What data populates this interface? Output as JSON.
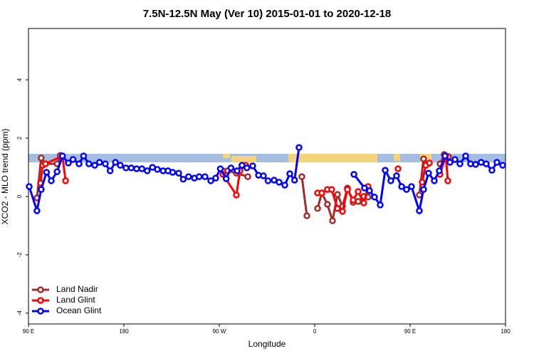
{
  "chart_data": {
    "type": "line",
    "title": "7.5N-12.5N May (Ver 10)   2015-01-01 to 2020-12-18",
    "x_label": "Longitude",
    "y_label": "XCO2 - MLO trend (ppm)",
    "xlim": [
      90,
      540
    ],
    "ylim": [
      -4.37,
      5.76
    ],
    "xticks": [
      {
        "value": 90,
        "label": "90 E"
      },
      {
        "value": 180,
        "label": "180"
      },
      {
        "value": 270,
        "label": "90 W"
      },
      {
        "value": 360,
        "label": "0"
      },
      {
        "value": 450,
        "label": "90 E"
      },
      {
        "value": 540,
        "label": "180"
      }
    ],
    "yticks": [
      -4,
      -2,
      0,
      2,
      4
    ],
    "legend": "lower left",
    "series": [
      {
        "name": "Land Nadir",
        "color": "#a52a2a",
        "x": [
          98,
          102,
          106,
          117,
          120,
          null,
          273.4,
          278,
          286.1,
          296.9,
          null,
          347.9,
          352.6,
          null,
          362.7,
          366.7,
          372,
          376.8,
          381.5,
          386.2,
          390.9,
          396.3,
          401,
          406.3,
          410.4,
          null,
          458.7,
          462.7,
          466.8,
          null,
          478.2,
          482.2,
          486.2
        ],
        "values": [
          -0.05,
          1.32,
          1.12,
          1.12,
          1.41,
          null,
          0.88,
          0.88,
          0.8,
          0.68,
          null,
          0.68,
          -0.66,
          null,
          -0.41,
          0.12,
          -0.27,
          -0.83,
          0.07,
          -0.34,
          0.29,
          -0.2,
          -0.17,
          0,
          -0.02,
          null,
          0.05,
          1.29,
          1.12,
          null,
          1.12,
          1.44,
          1.37
        ]
      },
      {
        "name": "Land Glint",
        "color": "#ff0000",
        "x": [
          101.4,
          103.4,
          106,
          122,
          125,
          null,
          273.4,
          286.1,
          289.5,
          294.9,
          null,
          362.7,
          366.7,
          372,
          376,
          381.5,
          386.2,
          390.9,
          396.3,
          401,
          406.3,
          410.4,
          null,
          438.6,
          null,
          461.4,
          464.8,
          468.2,
          null,
          478.2,
          483.6,
          485.6
        ],
        "values": [
          0.46,
          1.07,
          1.12,
          1.39,
          0.54,
          null,
          0.76,
          0.05,
          0.88,
          1.07,
          null,
          0.12,
          0.12,
          0.24,
          0.24,
          -0.41,
          -0.51,
          0.24,
          -0.12,
          0.17,
          -0.22,
          0.34,
          null,
          0.95,
          null,
          0.49,
          1.07,
          1.15,
          null,
          0.76,
          1.39,
          0.54
        ]
      },
      {
        "name": "Ocean Glint",
        "color": "#0000ff",
        "x": [
          90.7,
          98,
          102,
          107,
          111.5,
          117,
          122,
          127.6,
          132,
          137.7,
          142,
          147,
          152.5,
          157,
          162.5,
          167,
          172,
          176.6,
          182,
          187,
          192,
          197,
          202,
          207,
          211.6,
          217,
          221.6,
          226,
          231.7,
          236,
          241,
          246.5,
          251,
          256.5,
          262,
          266.6,
          271,
          276.5,
          281,
          286.8,
          291.4,
          296,
          301.5,
          307,
          311.6,
          316,
          321.7,
          326.4,
          331.8,
          336.5,
          341,
          345.2,
          null,
          397,
          407,
          411.7,
          416.4,
          421.8,
          426.5,
          431.8,
          437.2,
          442,
          446.6,
          451.3,
          458.7,
          462.7,
          467.4,
          472.8,
          477.5,
          482.9,
          487.6,
          492.3,
          497,
          502.4,
          507,
          511.8,
          517,
          521.8,
          527.2,
          531.9,
          537.3
        ],
        "values": [
          0.34,
          -0.49,
          0.24,
          0.83,
          0.54,
          0.85,
          1.39,
          1.15,
          1.27,
          1.12,
          1.39,
          1.12,
          1.07,
          1.17,
          1.12,
          0.88,
          1.17,
          1.07,
          0.98,
          0.98,
          0.95,
          0.95,
          0.88,
          1.0,
          0.93,
          0.88,
          0.88,
          0.83,
          0.8,
          0.59,
          0.68,
          0.63,
          0.68,
          0.68,
          0.54,
          0.63,
          0.95,
          0.61,
          0.98,
          0.88,
          1.07,
          0.98,
          1.05,
          0.73,
          0.71,
          0.54,
          0.56,
          0.49,
          0.39,
          0.78,
          0.56,
          1.68,
          null,
          0.76,
          0.29,
          0.2,
          -0.02,
          -0.29,
          0.9,
          0.54,
          0.71,
          0.34,
          0.24,
          0.34,
          -0.49,
          0.24,
          0.8,
          0.54,
          0.88,
          1.39,
          1.17,
          1.27,
          1.12,
          1.39,
          1.12,
          1.1,
          1.17,
          1.12,
          0.9,
          1.17,
          1.07
        ]
      }
    ]
  }
}
